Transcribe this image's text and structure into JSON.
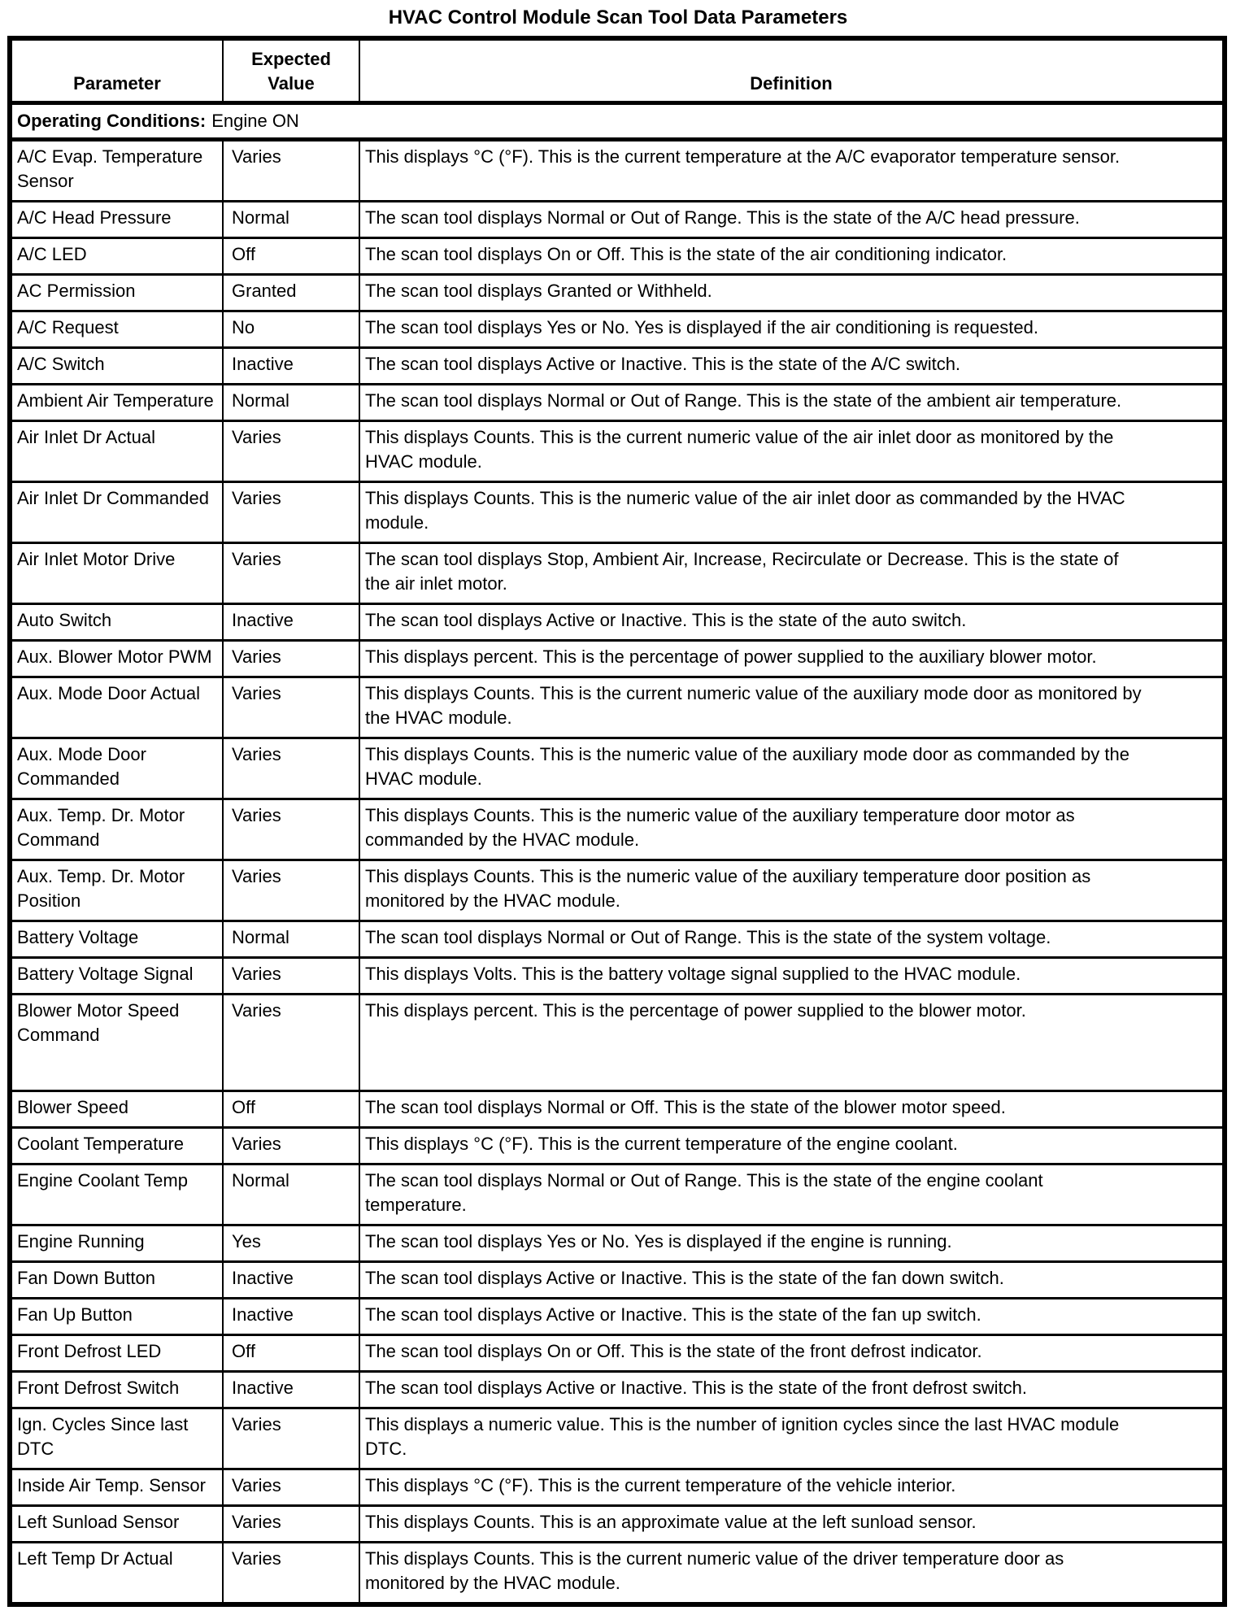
{
  "title": "HVAC Control Module Scan Tool Data Parameters",
  "table": {
    "headers": [
      "Parameter",
      "Expected\nValue",
      "Definition"
    ],
    "section_label": "Operating Conditions:",
    "section_value": "Engine ON",
    "rows": [
      {
        "parameter": "A/C Evap. Temperature Sensor",
        "expected": "Varies",
        "definition": "This displays °C (°F). This is the current temperature at the A/C evaporator temperature sensor."
      },
      {
        "parameter": "A/C Head Pressure",
        "expected": "Normal",
        "definition": "The scan tool displays Normal or Out of Range. This is the state of the A/C head pressure."
      },
      {
        "parameter": "A/C LED",
        "expected": "Off",
        "definition": "The scan tool displays On or Off. This is the state of the air conditioning indicator."
      },
      {
        "parameter": "AC Permission",
        "expected": "Granted",
        "definition": "The scan tool displays Granted or Withheld."
      },
      {
        "parameter": "A/C Request",
        "expected": "No",
        "definition": "The scan tool displays Yes or No. Yes is displayed if the air conditioning is requested."
      },
      {
        "parameter": "A/C Switch",
        "expected": "Inactive",
        "definition": "The scan tool displays Active or Inactive. This is the state of the A/C switch."
      },
      {
        "parameter": "Ambient Air Temperature",
        "expected": "Normal",
        "definition": "The scan tool displays Normal or Out of Range. This is the state of the ambient air temperature."
      },
      {
        "parameter": "Air Inlet Dr Actual",
        "expected": "Varies",
        "definition": "This displays Counts. This is the current numeric value of the air inlet door as monitored by the HVAC module."
      },
      {
        "parameter": "Air Inlet Dr Commanded",
        "expected": "Varies",
        "definition": "This displays Counts. This is the numeric value of the air inlet door as commanded by the HVAC module."
      },
      {
        "parameter": "Air Inlet Motor Drive",
        "expected": "Varies",
        "definition": "The scan tool displays Stop, Ambient Air, Increase, Recirculate or Decrease. This is the state of the air inlet motor."
      },
      {
        "parameter": "Auto Switch",
        "expected": "Inactive",
        "definition": "The scan tool displays Active or Inactive. This is the state of the auto switch."
      },
      {
        "parameter": "Aux. Blower Motor PWM",
        "expected": "Varies",
        "definition": "This displays percent. This is the percentage of power supplied to the auxiliary blower motor."
      },
      {
        "parameter": "Aux. Mode Door Actual",
        "expected": "Varies",
        "definition": "This displays Counts. This is the current numeric value of the auxiliary mode door as monitored by the HVAC module."
      },
      {
        "parameter": "Aux. Mode Door Commanded",
        "expected": "Varies",
        "definition": "This displays Counts. This is the numeric value of the auxiliary mode door as commanded by the HVAC module."
      },
      {
        "parameter": "Aux. Temp. Dr. Motor Command",
        "expected": "Varies",
        "definition": "This displays Counts. This is the numeric value of the auxiliary temperature door motor as commanded by the HVAC module."
      },
      {
        "parameter": "Aux. Temp. Dr. Motor Position",
        "expected": "Varies",
        "definition": "This displays Counts. This is the numeric value of the auxiliary temperature door position as monitored by the HVAC module."
      },
      {
        "parameter": "Battery Voltage",
        "expected": "Normal",
        "definition": "The scan tool displays Normal or Out of Range. This is the state of the system voltage."
      },
      {
        "parameter": "Battery Voltage Signal",
        "expected": "Varies",
        "definition": "This displays Volts. This is the battery voltage signal supplied to the HVAC module."
      },
      {
        "parameter": "Blower Motor Speed Command",
        "expected": "Varies",
        "definition": "This displays percent. This is the percentage of power supplied to the blower motor."
      },
      {
        "parameter": "Blower Speed",
        "expected": "Off",
        "definition": "The scan tool displays Normal or Off. This is the state of the blower motor speed."
      },
      {
        "parameter": "Coolant Temperature",
        "expected": "Varies",
        "definition": "This displays °C (°F). This is the current temperature of the engine coolant."
      },
      {
        "parameter": "Engine Coolant Temp",
        "expected": "Normal",
        "definition": "The scan tool displays Normal or Out of Range. This is the state of the engine coolant temperature."
      },
      {
        "parameter": "Engine Running",
        "expected": "Yes",
        "definition": "The scan tool displays Yes or No. Yes is displayed if the engine is running."
      },
      {
        "parameter": "Fan Down Button",
        "expected": "Inactive",
        "definition": "The scan tool displays Active or Inactive. This is the state of the fan down switch."
      },
      {
        "parameter": "Fan Up Button",
        "expected": "Inactive",
        "definition": "The scan tool displays Active or Inactive. This is the state of the fan up switch."
      },
      {
        "parameter": "Front Defrost LED",
        "expected": "Off",
        "definition": "The scan tool displays On or Off. This is the state of the front defrost indicator."
      },
      {
        "parameter": "Front Defrost Switch",
        "expected": "Inactive",
        "definition": "The scan tool displays Active or Inactive. This is the state of the front defrost switch."
      },
      {
        "parameter": "Ign. Cycles Since last DTC",
        "expected": "Varies",
        "definition": "This displays a numeric value. This is the number of ignition cycles since the last HVAC module DTC."
      },
      {
        "parameter": "Inside Air Temp. Sensor",
        "expected": "Varies",
        "definition": "This displays °C (°F). This is the current temperature of the vehicle interior."
      },
      {
        "parameter": "Left Sunload Sensor",
        "expected": "Varies",
        "definition": "This displays Counts. This is an approximate value at the left sunload sensor."
      },
      {
        "parameter": "Left Temp Dr Actual",
        "expected": "Varies",
        "definition": "This displays Counts. This is the current numeric value of the driver temperature door as monitored by the HVAC module."
      }
    ]
  }
}
